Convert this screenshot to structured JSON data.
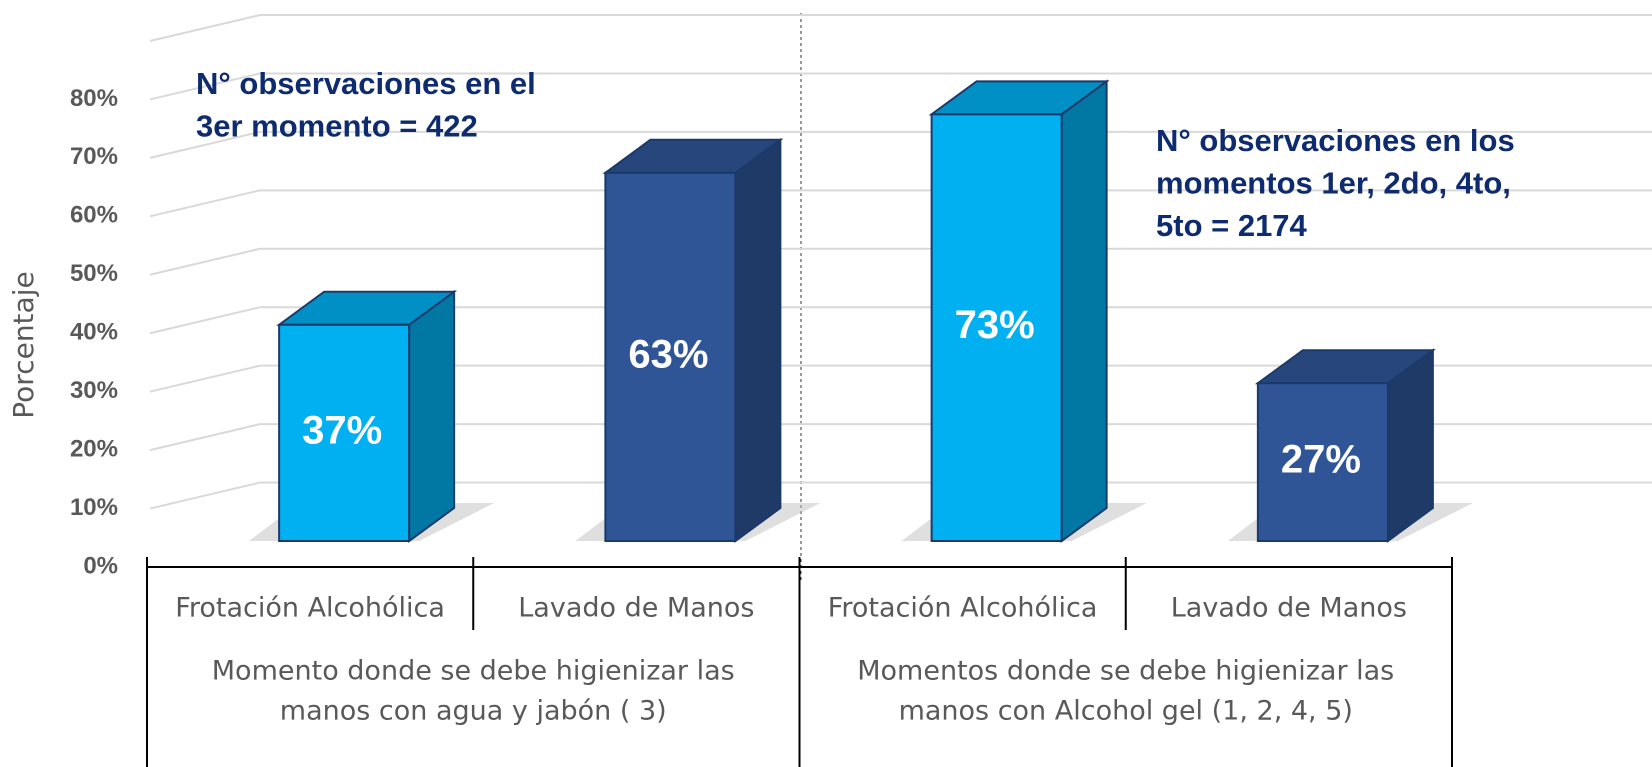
{
  "chart_data": {
    "type": "bar3d",
    "y_axis_label": "Porcentaje",
    "categories": [
      "Frotación Alcohólica",
      "Lavado de Manos",
      "Frotación Alcohólica",
      "Lavado de Manos"
    ],
    "groups": [
      {
        "lines": [
          "Momento donde se debe higienizar las",
          "manos con agua y jabón ( 3)"
        ]
      },
      {
        "lines": [
          "Momentos donde se debe higienizar las",
          "manos con Alcohol gel (1, 2, 4, 5)"
        ]
      }
    ],
    "values": [
      37,
      63,
      73,
      27
    ],
    "value_labels": [
      "37%",
      "63%",
      "73%",
      "27%"
    ],
    "colors": [
      "#00b0f0",
      "#2f5597",
      "#00b0f0",
      "#2f5597"
    ],
    "ylim": [
      0,
      90
    ],
    "yticks": [
      {
        "value": 0,
        "label": "0%"
      },
      {
        "value": 10,
        "label": "10%"
      },
      {
        "value": 20,
        "label": "20%"
      },
      {
        "value": 30,
        "label": "30%"
      },
      {
        "value": 40,
        "label": "40%"
      },
      {
        "value": 50,
        "label": "50%"
      },
      {
        "value": 60,
        "label": "60%"
      },
      {
        "value": 70,
        "label": "70%"
      },
      {
        "value": 80,
        "label": "80%"
      }
    ],
    "grid": true,
    "annotations": [
      {
        "lines": [
          "N° observaciones en el",
          "3er  momento = 422"
        ]
      },
      {
        "lines": [
          "N° observaciones en los",
          "momentos 1er, 2do, 4to,",
          "5to  = 2174"
        ]
      }
    ]
  }
}
